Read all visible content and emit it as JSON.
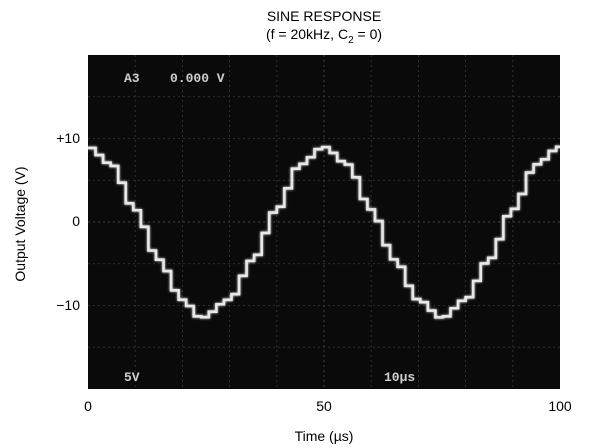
{
  "chart_data": {
    "type": "line",
    "title": "SINE RESPONSE",
    "subtitle": {
      "prefix": "(f = 20kHz, C",
      "sub": "2",
      "suffix": " = 0)"
    },
    "xlabel": "Time (µs)",
    "ylabel": "Output Voltage (V)",
    "xlim": [
      0,
      100
    ],
    "ylim": [
      -20,
      20
    ],
    "x_ticks": [
      "0",
      "50",
      "100"
    ],
    "y_ticks": [
      {
        "value": 10,
        "label": "+10"
      },
      {
        "value": 0,
        "label": "0"
      },
      {
        "value": -10,
        "label": "−10"
      }
    ],
    "grid": true,
    "background": "#0a0a0a",
    "trace_color": "#e8e8e8",
    "screen_text": {
      "top_left": "A3",
      "top_value": "0.000 V",
      "bottom_left": "5V",
      "bottom_right": "10µs"
    },
    "series": [
      {
        "x": [
          0,
          5,
          10,
          15,
          20,
          24,
          30,
          35,
          40,
          45,
          50,
          55,
          60,
          65,
          70,
          75,
          80,
          85,
          90,
          95,
          100
        ],
        "values": [
          9,
          6.9,
          1.5,
          -4.5,
          -9.3,
          -11.5,
          -9.3,
          -4.5,
          1.5,
          6.9,
          9.0,
          6.9,
          1.5,
          -4.5,
          -9.3,
          -11.5,
          -9.3,
          -4.5,
          1.5,
          6.9,
          9
        ]
      }
    ]
  }
}
